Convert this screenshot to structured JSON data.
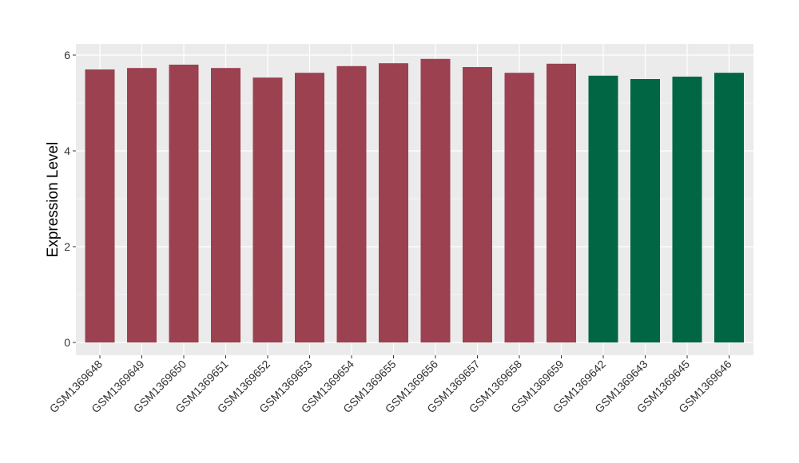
{
  "chart_data": {
    "type": "bar",
    "title": "",
    "xlabel": "",
    "ylabel": "Expression Level",
    "ylim": [
      0,
      6
    ],
    "yticks": [
      0,
      2,
      4,
      6
    ],
    "grid": true,
    "categories": [
      "GSM1369648",
      "GSM1369649",
      "GSM1369650",
      "GSM1369651",
      "GSM1369652",
      "GSM1369653",
      "GSM1369654",
      "GSM1369655",
      "GSM1369656",
      "GSM1369657",
      "GSM1369658",
      "GSM1369659",
      "GSM1369642",
      "GSM1369643",
      "GSM1369645",
      "GSM1369646"
    ],
    "values": [
      5.7,
      5.73,
      5.8,
      5.73,
      5.53,
      5.63,
      5.77,
      5.83,
      5.92,
      5.75,
      5.63,
      5.82,
      5.57,
      5.5,
      5.55,
      5.63
    ],
    "group_colors": [
      "#9b4150",
      "#9b4150",
      "#9b4150",
      "#9b4150",
      "#9b4150",
      "#9b4150",
      "#9b4150",
      "#9b4150",
      "#9b4150",
      "#9b4150",
      "#9b4150",
      "#9b4150",
      "#006644",
      "#006644",
      "#006644",
      "#006644"
    ],
    "panel_background": "#ebebeb"
  }
}
